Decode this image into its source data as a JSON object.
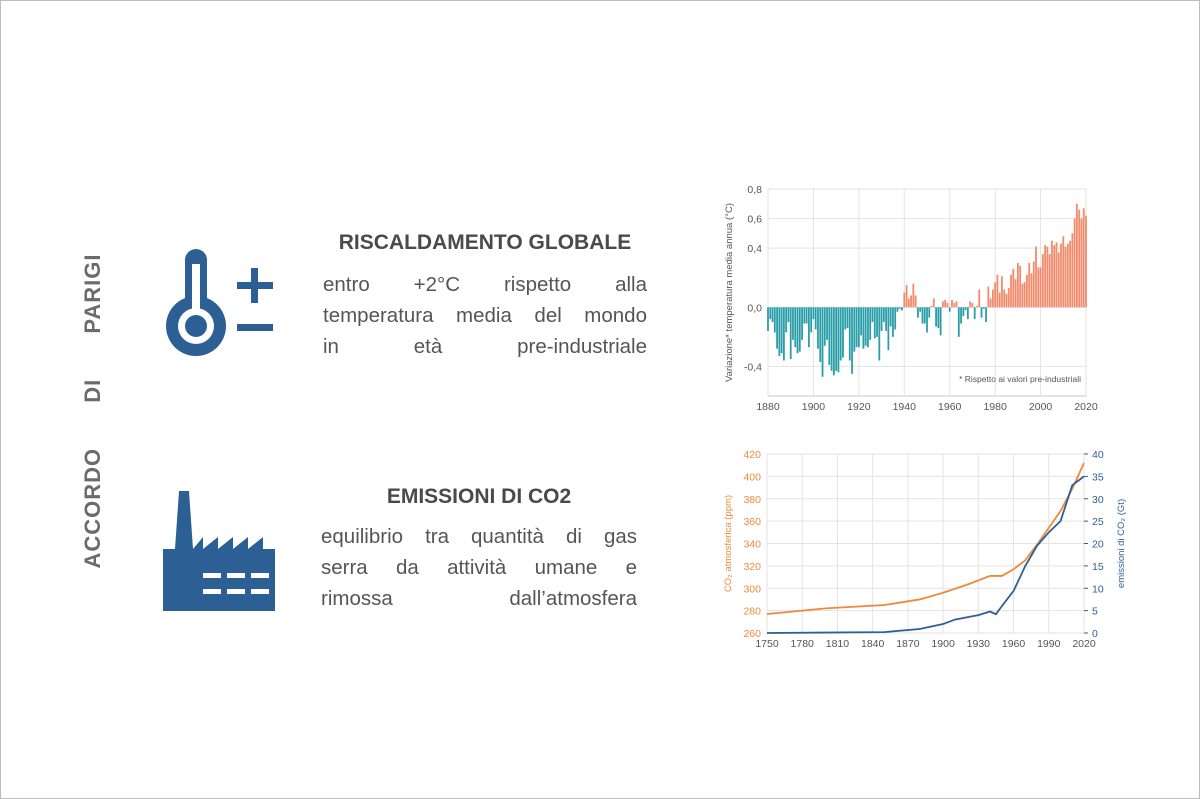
{
  "side_title": "ACCORDO DI PARIGI",
  "sections": [
    {
      "title": "RISCALDAMENTO GLOBALE",
      "lines": [
        "entro +2°C rispetto alla",
        "temperatura media del mondo",
        "in età pre-industriale"
      ]
    },
    {
      "title": "EMISSIONI DI CO2",
      "lines": [
        "equilibrio tra quantità di gas",
        "serra da attività umane e",
        "rimossa dall’atmosfera"
      ]
    }
  ],
  "chart_data": [
    {
      "type": "bar",
      "y_label": "Variazione* temperatura media annua (°C)",
      "annotation": "* Rispetto ai valori pre-industriali",
      "color": "#f28b6c",
      "negative_color": "#2a9ea8",
      "x": [
        1880,
        1881,
        1882,
        1883,
        1884,
        1885,
        1886,
        1887,
        1888,
        1889,
        1890,
        1891,
        1892,
        1893,
        1894,
        1895,
        1896,
        1897,
        1898,
        1899,
        1900,
        1901,
        1902,
        1903,
        1904,
        1905,
        1906,
        1907,
        1908,
        1909,
        1910,
        1911,
        1912,
        1913,
        1914,
        1915,
        1916,
        1917,
        1918,
        1919,
        1920,
        1921,
        1922,
        1923,
        1924,
        1925,
        1926,
        1927,
        1928,
        1929,
        1930,
        1931,
        1932,
        1933,
        1934,
        1935,
        1936,
        1937,
        1938,
        1939,
        1940,
        1941,
        1942,
        1943,
        1944,
        1945,
        1946,
        1947,
        1948,
        1949,
        1950,
        1951,
        1952,
        1953,
        1954,
        1955,
        1956,
        1957,
        1958,
        1959,
        1960,
        1961,
        1962,
        1963,
        1964,
        1965,
        1966,
        1967,
        1968,
        1969,
        1970,
        1971,
        1972,
        1973,
        1974,
        1975,
        1976,
        1977,
        1978,
        1979,
        1980,
        1981,
        1982,
        1983,
        1984,
        1985,
        1986,
        1987,
        1988,
        1989,
        1990,
        1991,
        1992,
        1993,
        1994,
        1995,
        1996,
        1997,
        1998,
        1999,
        2000,
        2001,
        2002,
        2003,
        2004,
        2005,
        2006,
        2007,
        2008,
        2009,
        2010,
        2011,
        2012,
        2013,
        2014,
        2015,
        2016,
        2017,
        2018,
        2019,
        2020
      ],
      "values": [
        -0.16,
        -0.08,
        -0.1,
        -0.17,
        -0.28,
        -0.33,
        -0.31,
        -0.36,
        -0.17,
        -0.1,
        -0.35,
        -0.22,
        -0.27,
        -0.31,
        -0.3,
        -0.22,
        -0.11,
        -0.11,
        -0.27,
        -0.17,
        -0.08,
        -0.15,
        -0.28,
        -0.37,
        -0.47,
        -0.26,
        -0.22,
        -0.39,
        -0.43,
        -0.46,
        -0.43,
        -0.44,
        -0.36,
        -0.34,
        -0.15,
        -0.14,
        -0.36,
        -0.45,
        -0.3,
        -0.27,
        -0.27,
        -0.19,
        -0.28,
        -0.26,
        -0.27,
        -0.22,
        -0.1,
        -0.21,
        -0.2,
        -0.36,
        -0.16,
        -0.1,
        -0.16,
        -0.29,
        -0.13,
        -0.2,
        -0.15,
        -0.03,
        -0.01,
        -0.02,
        0.1,
        0.15,
        0.06,
        0.08,
        0.16,
        0.08,
        -0.07,
        -0.03,
        -0.11,
        -0.11,
        -0.17,
        -0.07,
        0.01,
        0.06,
        -0.13,
        -0.14,
        -0.19,
        0.04,
        0.05,
        0.03,
        -0.03,
        0.05,
        0.03,
        0.04,
        -0.2,
        -0.11,
        -0.06,
        -0.02,
        -0.08,
        0.04,
        0.03,
        -0.08,
        0.01,
        0.12,
        -0.07,
        -0.01,
        -0.1,
        0.14,
        0.06,
        0.12,
        0.17,
        0.22,
        0.1,
        0.21,
        0.12,
        0.09,
        0.13,
        0.22,
        0.26,
        0.19,
        0.3,
        0.28,
        0.16,
        0.17,
        0.22,
        0.3,
        0.23,
        0.31,
        0.41,
        0.27,
        0.27,
        0.36,
        0.42,
        0.41,
        0.36,
        0.45,
        0.42,
        0.44,
        0.37,
        0.43,
        0.48,
        0.41,
        0.43,
        0.45,
        0.5,
        0.6,
        0.7,
        0.66,
        0.6,
        0.67,
        0.62
      ],
      "xlim": [
        1880,
        2020
      ],
      "xticks": [
        1880,
        1900,
        1920,
        1940,
        1960,
        1980,
        2000,
        2020
      ],
      "ylim": [
        -0.6,
        0.8
      ],
      "yticks": [
        {
          "value": 0.8,
          "label": "0,8"
        },
        {
          "value": 0.6,
          "label": "0,6"
        },
        {
          "value": 0.4,
          "label": "0,4"
        },
        {
          "value": 0.0,
          "label": "0,0"
        },
        {
          "value": -0.4,
          "label": "-0,4"
        }
      ],
      "grid": true
    },
    {
      "type": "line",
      "y_label": "CO₂ atmosferica (ppm)",
      "y2_label": "emissioni di CO₂ (Gt)",
      "series": [
        {
          "name": "CO₂ atmosferica (ppm)",
          "color": "#f0883a",
          "x": [
            1750,
            1800,
            1850,
            1880,
            1900,
            1920,
            1940,
            1950,
            1960,
            1970,
            1980,
            1990,
            2000,
            2010,
            2020
          ],
          "values": [
            277,
            282,
            285,
            290,
            296,
            303,
            311,
            311,
            317,
            325,
            339,
            354,
            369,
            389,
            412
          ]
        },
        {
          "name": "emissioni di CO₂ (Gt)",
          "color": "#2f5f96",
          "axis": "y2",
          "x": [
            1750,
            1800,
            1850,
            1880,
            1900,
            1910,
            1920,
            1930,
            1940,
            1945,
            1950,
            1960,
            1970,
            1980,
            1990,
            2000,
            2010,
            2020
          ],
          "values": [
            0,
            0.1,
            0.2,
            0.9,
            2,
            3,
            3.5,
            4,
            4.8,
            4.2,
            6,
            9.4,
            15,
            19.5,
            22.5,
            25,
            33,
            35
          ]
        }
      ],
      "xlim": [
        1750,
        2020
      ],
      "xticks": [
        1750,
        1780,
        1810,
        1840,
        1870,
        1900,
        1930,
        1960,
        1990,
        2020
      ],
      "ylim": [
        260,
        420
      ],
      "yticks": [
        260,
        280,
        300,
        320,
        340,
        360,
        380,
        400,
        420
      ],
      "y2lim": [
        0,
        40
      ],
      "y2ticks": [
        0,
        5,
        10,
        15,
        20,
        25,
        30,
        35,
        40
      ],
      "grid": true
    }
  ]
}
